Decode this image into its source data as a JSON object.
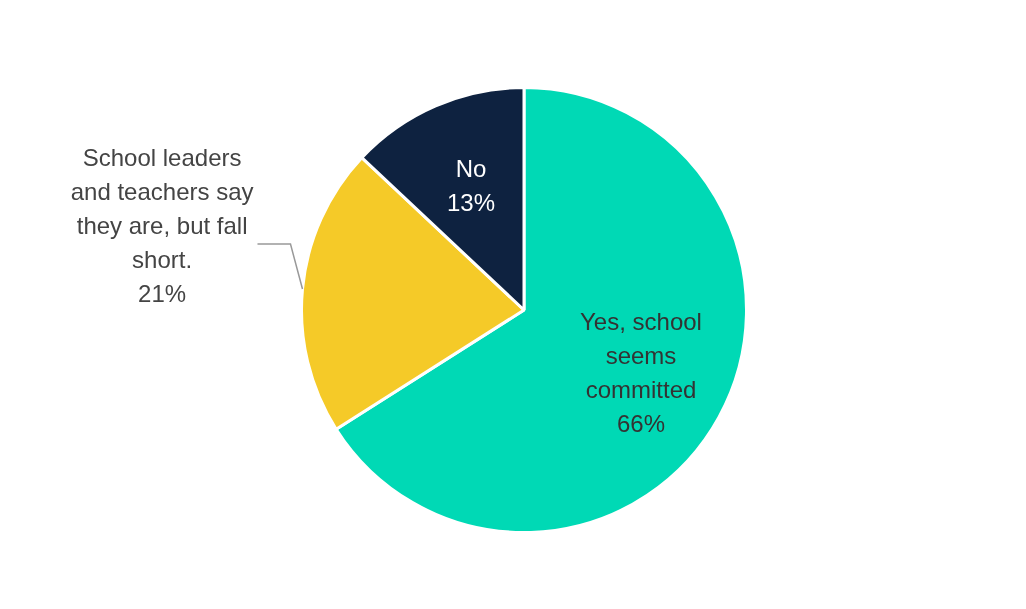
{
  "chart_data": {
    "type": "pie",
    "categories": [
      "Yes, school seems committed",
      "School leaders and teachers say they are, but fall short.",
      "No"
    ],
    "values": [
      66,
      21,
      13
    ],
    "value_labels": [
      "66%",
      "21%",
      "13%"
    ],
    "colors": [
      "#00d9b5",
      "#f5ca28",
      "#0e2240"
    ]
  }
}
